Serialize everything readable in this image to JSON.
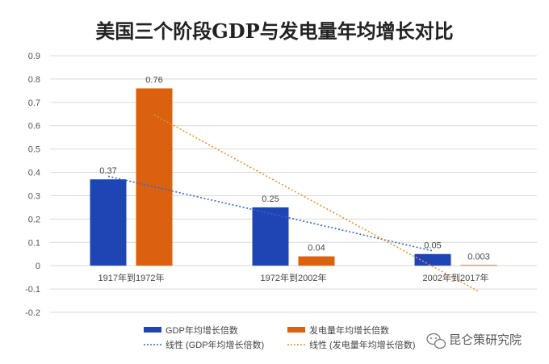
{
  "chart_data": {
    "type": "bar",
    "title": "美国三个阶段GDP与发电量年均增长对比",
    "categories": [
      "1917年到1972年",
      "1972年到2002年",
      "2002年到2017年"
    ],
    "series": [
      {
        "name": "GDP年均增长倍数",
        "values": [
          0.37,
          0.25,
          0.05
        ],
        "labels": [
          "0.37",
          "0.25",
          "0.05"
        ],
        "color": "#1f45b5"
      },
      {
        "name": "发电量年均增长倍数",
        "values": [
          0.76,
          0.04,
          0.003
        ],
        "labels": [
          "0.76",
          "0.04",
          "0.003"
        ],
        "color": "#d9610f"
      }
    ],
    "trendlines": [
      {
        "name": "线性 (GDP年均增长倍数)",
        "series": 0,
        "type": "linear",
        "color": "#3366cc"
      },
      {
        "name": "线性 (发电量年均增长倍数)",
        "series": 1,
        "type": "linear",
        "color": "#e69138"
      }
    ],
    "ylim": [
      -0.2,
      0.9
    ],
    "yticks": [
      -0.2,
      -0.1,
      0,
      0.1,
      0.2,
      0.3,
      0.4,
      0.5,
      0.6,
      0.7,
      0.8,
      0.9
    ],
    "ytick_labels": [
      "-0.2",
      "-0.1",
      "0",
      "0.1",
      "0.2",
      "0.3",
      "0.4",
      "0.5",
      "0.6",
      "0.7",
      "0.8",
      "0.9"
    ],
    "grid": true,
    "legend_position": "bottom",
    "xlabel": "",
    "ylabel": ""
  },
  "watermark": {
    "text": "昆仑策研究院",
    "icon": "wechat-icon"
  }
}
